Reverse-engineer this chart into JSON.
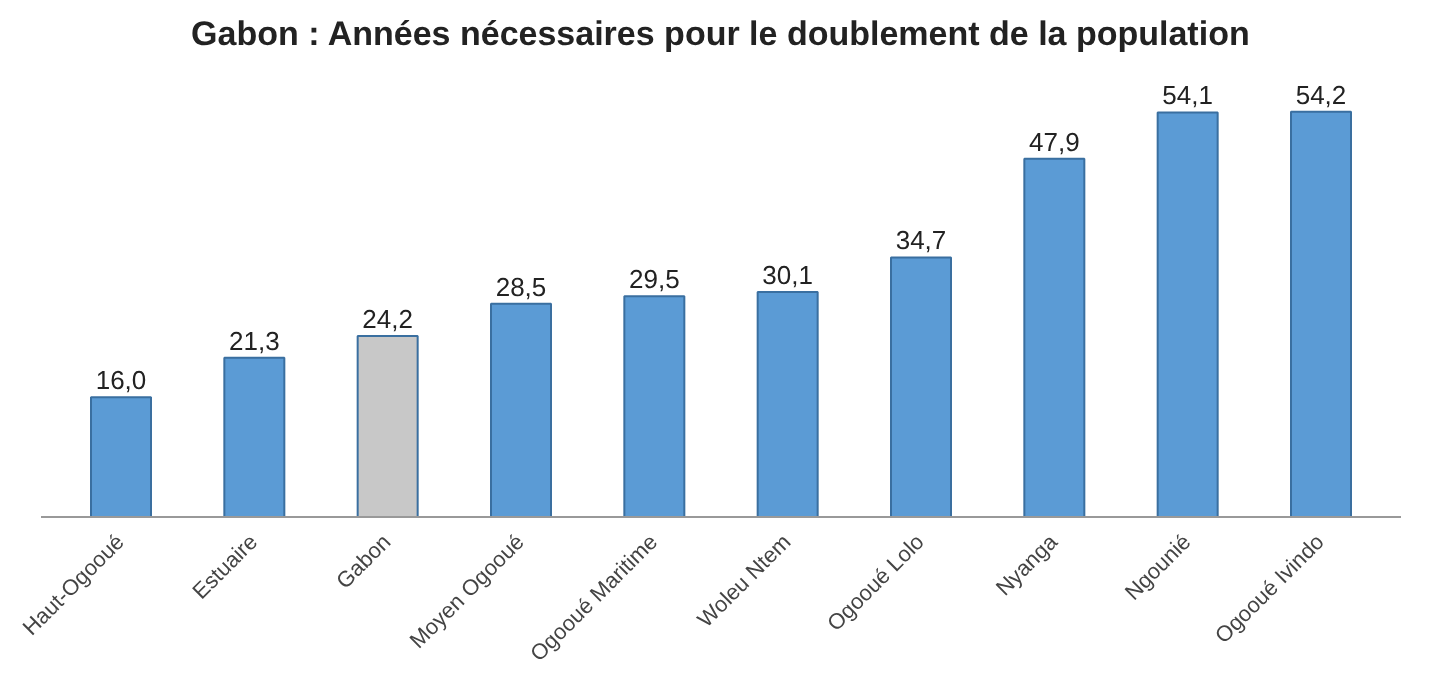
{
  "chart_data": {
    "type": "bar",
    "title": "Gabon : Années nécessaires pour le doublement de la population",
    "categories": [
      "Haut-Ogooué",
      "Estuaire",
      "Gabon",
      "Moyen Ogooué",
      "Ogooué Maritime",
      "Woleu Ntem",
      "Ogooué Lolo",
      "Nyanga",
      "Ngounié",
      "Ogooué Ivindo"
    ],
    "values": [
      16.0,
      21.3,
      24.2,
      28.5,
      29.5,
      30.1,
      34.7,
      47.9,
      54.1,
      54.2
    ],
    "value_labels": [
      "16,0",
      "21,3",
      "24,2",
      "28,5",
      "29,5",
      "30,1",
      "34,7",
      "47,9",
      "54,1",
      "54,2"
    ],
    "colors": [
      "#5b9bd5",
      "#5b9bd5",
      "#c8c8c8",
      "#5b9bd5",
      "#5b9bd5",
      "#5b9bd5",
      "#5b9bd5",
      "#5b9bd5",
      "#5b9bd5",
      "#5b9bd5"
    ]
  }
}
